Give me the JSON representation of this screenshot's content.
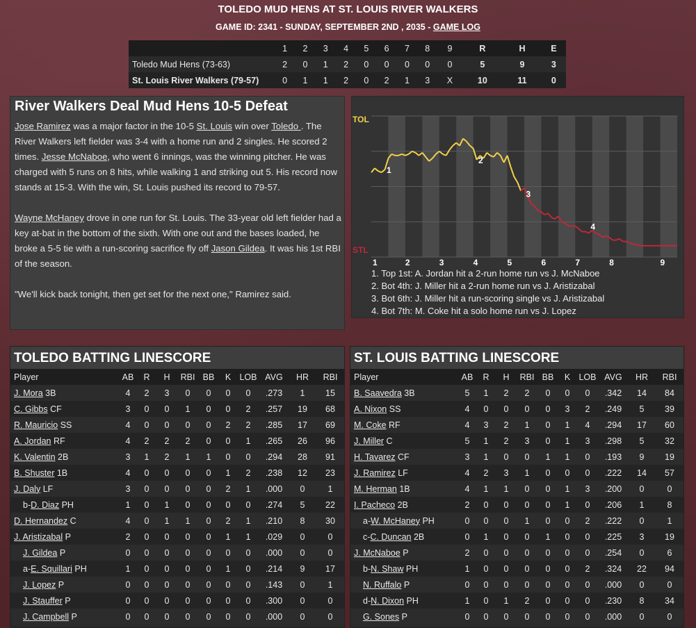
{
  "header": {
    "title": "TOLEDO MUD HENS AT ST. LOUIS RIVER WALKERS",
    "subtitle_text": "GAME ID: 2341 - SUNDAY, SEPTEMBER 2ND , 2035 - ",
    "game_log_link": "GAME LOG"
  },
  "linescore": {
    "headers": [
      "1",
      "2",
      "3",
      "4",
      "5",
      "6",
      "7",
      "8",
      "9",
      "R",
      "H",
      "E"
    ],
    "away": {
      "team": "Toledo Mud Hens (73-63)",
      "innings": [
        "2",
        "0",
        "1",
        "2",
        "0",
        "0",
        "0",
        "0",
        "0"
      ],
      "r": "5",
      "h": "9",
      "e": "3"
    },
    "home": {
      "team": "St. Louis River Walkers (79-57)",
      "innings": [
        "0",
        "1",
        "1",
        "2",
        "0",
        "2",
        "1",
        "3",
        "X"
      ],
      "r": "10",
      "h": "11",
      "e": "0"
    }
  },
  "story": {
    "headline": "River Walkers Deal Mud Hens 10-5 Defeat",
    "p1": [
      {
        "t": "Jose Ramirez",
        "u": true
      },
      {
        "t": " was a major factor in the 10-5 "
      },
      {
        "t": "St. Louis",
        "u": true
      },
      {
        "t": " win over "
      },
      {
        "t": "Toledo ",
        "u": true
      },
      {
        "t": ". The River Walkers left fielder was 3-4 with a home run and 2 singles. He scored 2 times. "
      },
      {
        "t": "Jesse McNaboe",
        "u": true
      },
      {
        "t": ", who went 6 innings, was the winning pitcher. He was charged with 5 runs on 8 hits, while walking 1 and striking out 5. His record now stands at 15-3. With the win, St. Louis pushed its record to 79-57."
      }
    ],
    "p2": [
      {
        "t": "Wayne McHaney",
        "u": true
      },
      {
        "t": " drove in one run for St. Louis. The 33-year old left fielder had a key at-bat in the bottom of the sixth. With one out and the bases loaded, he broke a 5-5 tie with a run-scoring sacrifice fly off "
      },
      {
        "t": "Jason Gildea",
        "u": true
      },
      {
        "t": ". It was his 1st RBI of the season."
      }
    ],
    "p3": "\"We'll kick back tonight, then get set for the next one,\" Ramirez said."
  },
  "win_prob": {
    "top_label": "TOL",
    "bottom_label": "STL",
    "innings": [
      "1",
      "2",
      "3",
      "4",
      "5",
      "6",
      "7",
      "8",
      "9"
    ],
    "colors": {
      "away": "#f2d24a",
      "home": "#c0283a"
    },
    "curve": [
      [
        0.0,
        0.6
      ],
      [
        0.1,
        0.63
      ],
      [
        0.2,
        0.61
      ],
      [
        0.3,
        0.6
      ],
      [
        0.4,
        0.62
      ],
      [
        0.5,
        0.7
      ],
      [
        0.6,
        0.73
      ],
      [
        0.7,
        0.72
      ],
      [
        0.8,
        0.72
      ],
      [
        0.9,
        0.73
      ],
      [
        1.0,
        0.72
      ],
      [
        1.1,
        0.73
      ],
      [
        1.2,
        0.75
      ],
      [
        1.3,
        0.74
      ],
      [
        1.4,
        0.72
      ],
      [
        1.5,
        0.74
      ],
      [
        1.6,
        0.71
      ],
      [
        1.7,
        0.68
      ],
      [
        1.8,
        0.7
      ],
      [
        1.9,
        0.73
      ],
      [
        2.0,
        0.75
      ],
      [
        2.1,
        0.73
      ],
      [
        2.2,
        0.72
      ],
      [
        2.3,
        0.76
      ],
      [
        2.4,
        0.79
      ],
      [
        2.5,
        0.81
      ],
      [
        2.6,
        0.79
      ],
      [
        2.7,
        0.84
      ],
      [
        2.8,
        0.82
      ],
      [
        2.9,
        0.79
      ],
      [
        3.0,
        0.77
      ],
      [
        3.1,
        0.69
      ],
      [
        3.2,
        0.72
      ],
      [
        3.3,
        0.7
      ],
      [
        3.4,
        0.74
      ],
      [
        3.5,
        0.72
      ],
      [
        3.6,
        0.71
      ],
      [
        3.7,
        0.74
      ],
      [
        3.8,
        0.72
      ],
      [
        3.9,
        0.67
      ],
      [
        4.0,
        0.72
      ],
      [
        4.1,
        0.64
      ],
      [
        4.2,
        0.57
      ],
      [
        4.3,
        0.53
      ],
      [
        4.4,
        0.47
      ],
      [
        4.5,
        0.49
      ],
      [
        4.6,
        0.43
      ],
      [
        4.7,
        0.38
      ],
      [
        4.8,
        0.36
      ],
      [
        4.9,
        0.33
      ],
      [
        5.0,
        0.32
      ],
      [
        5.1,
        0.3
      ],
      [
        5.2,
        0.31
      ],
      [
        5.3,
        0.28
      ],
      [
        5.4,
        0.27
      ],
      [
        5.5,
        0.29
      ],
      [
        5.6,
        0.25
      ],
      [
        5.7,
        0.24
      ],
      [
        5.8,
        0.22
      ],
      [
        5.9,
        0.22
      ],
      [
        6.0,
        0.22
      ],
      [
        6.1,
        0.2
      ],
      [
        6.2,
        0.18
      ],
      [
        6.3,
        0.18
      ],
      [
        6.4,
        0.17
      ],
      [
        6.5,
        0.19
      ],
      [
        6.6,
        0.17
      ],
      [
        6.7,
        0.16
      ],
      [
        6.8,
        0.14
      ],
      [
        6.9,
        0.15
      ],
      [
        7.0,
        0.14
      ],
      [
        7.1,
        0.12
      ],
      [
        7.2,
        0.12
      ],
      [
        7.3,
        0.13
      ],
      [
        7.4,
        0.11
      ],
      [
        7.5,
        0.11
      ],
      [
        7.6,
        0.1
      ],
      [
        7.7,
        0.09
      ],
      [
        7.8,
        0.09
      ],
      [
        7.9,
        0.08
      ],
      [
        8.0,
        0.08
      ],
      [
        8.2,
        0.08
      ],
      [
        8.4,
        0.08
      ],
      [
        8.6,
        0.08
      ],
      [
        8.8,
        0.08
      ],
      [
        9.0,
        0.08
      ]
    ],
    "markers": [
      {
        "label": "1",
        "x": 0.45,
        "y": 0.62
      },
      {
        "label": "2",
        "x": 3.15,
        "y": 0.69
      },
      {
        "label": "3",
        "x": 4.55,
        "y": 0.45
      },
      {
        "label": "4",
        "x": 6.45,
        "y": 0.22
      }
    ],
    "events": [
      "1. Top 1st: A. Jordan hit a 2-run home run vs J. McNaboe",
      "2. Bot 4th: J. Miller hit a 2-run home run vs J. Aristizabal",
      "3. Bot 6th: J. Miller hit a run-scoring single vs J. Aristizabal",
      "4. Bot 7th: M. Coke hit a solo home run vs J. Lopez"
    ]
  },
  "batting_headers": [
    "Player",
    "AB",
    "R",
    "H",
    "RBI",
    "BB",
    "K",
    "LOB",
    "AVG",
    "HR",
    "RBI"
  ],
  "away_batting": {
    "title": "TOLEDO BATTING LINESCORE",
    "rows": [
      {
        "prefix": "",
        "name": "J. Mora",
        "pos": "3B",
        "indent": 0,
        "s": [
          "4",
          "2",
          "3",
          "0",
          "0",
          "0",
          "0",
          ".273",
          "1",
          "15"
        ]
      },
      {
        "prefix": "",
        "name": "C. Gibbs",
        "pos": "CF",
        "indent": 0,
        "s": [
          "3",
          "0",
          "0",
          "1",
          "0",
          "0",
          "2",
          ".257",
          "19",
          "68"
        ]
      },
      {
        "prefix": "",
        "name": "R. Mauricio",
        "pos": "SS",
        "indent": 0,
        "s": [
          "4",
          "0",
          "0",
          "0",
          "0",
          "2",
          "2",
          ".285",
          "17",
          "69"
        ]
      },
      {
        "prefix": "",
        "name": "A. Jordan",
        "pos": "RF",
        "indent": 0,
        "s": [
          "4",
          "2",
          "2",
          "2",
          "0",
          "0",
          "1",
          ".265",
          "26",
          "96"
        ]
      },
      {
        "prefix": "",
        "name": "K. Valentin",
        "pos": "2B",
        "indent": 0,
        "s": [
          "3",
          "1",
          "2",
          "1",
          "1",
          "0",
          "0",
          ".294",
          "28",
          "91"
        ]
      },
      {
        "prefix": "",
        "name": "B. Shuster",
        "pos": "1B",
        "indent": 0,
        "s": [
          "4",
          "0",
          "0",
          "0",
          "0",
          "1",
          "2",
          ".238",
          "12",
          "23"
        ]
      },
      {
        "prefix": "",
        "name": "J. Daly",
        "pos": "LF",
        "indent": 0,
        "s": [
          "3",
          "0",
          "0",
          "0",
          "0",
          "2",
          "1",
          ".000",
          "0",
          "1"
        ]
      },
      {
        "prefix": "b-",
        "name": "D. Diaz",
        "pos": "PH",
        "indent": 1,
        "s": [
          "1",
          "0",
          "1",
          "0",
          "0",
          "0",
          "0",
          ".274",
          "5",
          "22"
        ]
      },
      {
        "prefix": "",
        "name": "D. Hernandez",
        "pos": "C",
        "indent": 0,
        "s": [
          "4",
          "0",
          "1",
          "1",
          "0",
          "2",
          "1",
          ".210",
          "8",
          "30"
        ]
      },
      {
        "prefix": "",
        "name": "J. Aristizabal",
        "pos": "P",
        "indent": 0,
        "s": [
          "2",
          "0",
          "0",
          "0",
          "0",
          "1",
          "1",
          ".029",
          "0",
          "0"
        ]
      },
      {
        "prefix": "",
        "name": "J. Gildea",
        "pos": "P",
        "indent": 1,
        "s": [
          "0",
          "0",
          "0",
          "0",
          "0",
          "0",
          "0",
          ".000",
          "0",
          "0"
        ]
      },
      {
        "prefix": "a-",
        "name": "E. Squillari",
        "pos": "PH",
        "indent": 1,
        "s": [
          "1",
          "0",
          "0",
          "0",
          "0",
          "1",
          "0",
          ".214",
          "9",
          "17"
        ]
      },
      {
        "prefix": "",
        "name": "J. Lopez",
        "pos": "P",
        "indent": 1,
        "s": [
          "0",
          "0",
          "0",
          "0",
          "0",
          "0",
          "0",
          ".143",
          "0",
          "1"
        ]
      },
      {
        "prefix": "",
        "name": "J. Stauffer",
        "pos": "P",
        "indent": 1,
        "s": [
          "0",
          "0",
          "0",
          "0",
          "0",
          "0",
          "0",
          ".300",
          "0",
          "0"
        ]
      },
      {
        "prefix": "",
        "name": "J. Campbell",
        "pos": "P",
        "indent": 1,
        "s": [
          "0",
          "0",
          "0",
          "0",
          "0",
          "0",
          "0",
          ".000",
          "0",
          "0"
        ]
      }
    ]
  },
  "home_batting": {
    "title": "ST. LOUIS BATTING LINESCORE",
    "rows": [
      {
        "prefix": "",
        "name": "B. Saavedra",
        "pos": "3B",
        "indent": 0,
        "s": [
          "5",
          "1",
          "2",
          "2",
          "0",
          "0",
          "0",
          ".342",
          "14",
          "84"
        ]
      },
      {
        "prefix": "",
        "name": "A. Nixon",
        "pos": "SS",
        "indent": 0,
        "s": [
          "4",
          "0",
          "0",
          "0",
          "0",
          "3",
          "2",
          ".249",
          "5",
          "39"
        ]
      },
      {
        "prefix": "",
        "name": "M. Coke",
        "pos": "RF",
        "indent": 0,
        "s": [
          "4",
          "3",
          "2",
          "1",
          "0",
          "1",
          "4",
          ".294",
          "17",
          "60"
        ]
      },
      {
        "prefix": "",
        "name": "J. Miller",
        "pos": "C",
        "indent": 0,
        "s": [
          "5",
          "1",
          "2",
          "3",
          "0",
          "1",
          "3",
          ".298",
          "5",
          "32"
        ]
      },
      {
        "prefix": "",
        "name": "H. Tavarez",
        "pos": "CF",
        "indent": 0,
        "s": [
          "3",
          "1",
          "0",
          "0",
          "1",
          "1",
          "0",
          ".193",
          "9",
          "19"
        ]
      },
      {
        "prefix": "",
        "name": "J. Ramirez",
        "pos": "LF",
        "indent": 0,
        "s": [
          "4",
          "2",
          "3",
          "1",
          "0",
          "0",
          "0",
          ".222",
          "14",
          "57"
        ]
      },
      {
        "prefix": "",
        "name": "M. Herman",
        "pos": "1B",
        "indent": 0,
        "s": [
          "4",
          "1",
          "1",
          "0",
          "0",
          "1",
          "3",
          ".200",
          "0",
          "0"
        ]
      },
      {
        "prefix": "",
        "name": "I. Pacheco",
        "pos": "2B",
        "indent": 0,
        "s": [
          "2",
          "0",
          "0",
          "0",
          "0",
          "1",
          "0",
          ".206",
          "1",
          "8"
        ]
      },
      {
        "prefix": "a-",
        "name": "W. McHaney",
        "pos": "PH",
        "indent": 1,
        "s": [
          "0",
          "0",
          "0",
          "1",
          "0",
          "0",
          "2",
          ".222",
          "0",
          "1"
        ]
      },
      {
        "prefix": "c-",
        "name": "C. Duncan",
        "pos": "2B",
        "indent": 1,
        "s": [
          "0",
          "1",
          "0",
          "0",
          "1",
          "0",
          "0",
          ".225",
          "3",
          "19"
        ]
      },
      {
        "prefix": "",
        "name": "J. McNaboe",
        "pos": "P",
        "indent": 0,
        "s": [
          "2",
          "0",
          "0",
          "0",
          "0",
          "0",
          "0",
          ".254",
          "0",
          "6"
        ]
      },
      {
        "prefix": "b-",
        "name": "N. Shaw",
        "pos": "PH",
        "indent": 1,
        "s": [
          "1",
          "0",
          "0",
          "0",
          "0",
          "0",
          "2",
          ".324",
          "22",
          "94"
        ]
      },
      {
        "prefix": "",
        "name": "N. Ruffalo",
        "pos": "P",
        "indent": 1,
        "s": [
          "0",
          "0",
          "0",
          "0",
          "0",
          "0",
          "0",
          ".000",
          "0",
          "0"
        ]
      },
      {
        "prefix": "d-",
        "name": "N. Dixon",
        "pos": "PH",
        "indent": 1,
        "s": [
          "1",
          "0",
          "1",
          "2",
          "0",
          "0",
          "0",
          ".230",
          "8",
          "34"
        ]
      },
      {
        "prefix": "",
        "name": "G. Sones",
        "pos": "P",
        "indent": 1,
        "s": [
          "0",
          "0",
          "0",
          "0",
          "0",
          "0",
          "0",
          ".000",
          "0",
          "0"
        ]
      }
    ]
  }
}
